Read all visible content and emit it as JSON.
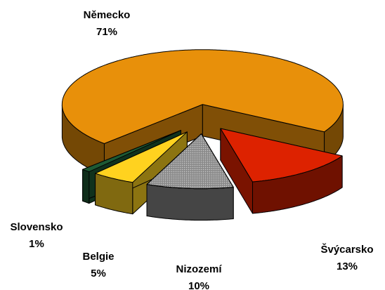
{
  "chart_data": {
    "type": "pie",
    "categories": [
      "Německo",
      "Švýcarsko",
      "Nizozemí",
      "Belgie",
      "Slovensko"
    ],
    "values": [
      71,
      13,
      10,
      5,
      1
    ],
    "value_labels": [
      "71%",
      "13%",
      "10%",
      "5%",
      "1%"
    ],
    "colors": [
      "#e8900a",
      "#dd2200",
      "#8a8a8a",
      "#ffd21f",
      "#1d5a34"
    ]
  }
}
